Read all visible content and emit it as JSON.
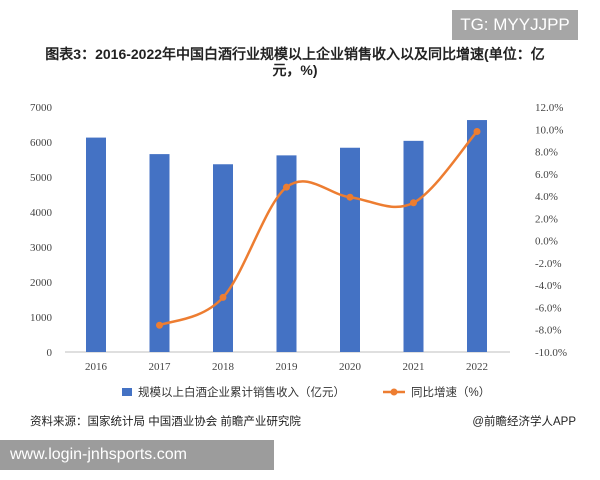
{
  "watermark_tag": "TG: MYYJJPP",
  "title": "图表3：2016-2022年中国白酒行业规模以上企业销售收入以及同比增速(单位：亿元，%)",
  "source": "资料来源：国家统计局 中国酒业协会 前瞻产业研究院",
  "publisher": "@前瞻经济学人APP",
  "site_banner": "www.login-jnhsports.com",
  "colors": {
    "bar": "#4472c4",
    "line": "#ed7d31"
  },
  "chart_data": {
    "type": "bar+line",
    "categories": [
      "2016",
      "2017",
      "2018",
      "2019",
      "2020",
      "2021",
      "2022"
    ],
    "series": [
      {
        "name": "规模以上白酒企业累计销售收入（亿元）",
        "type": "bar",
        "axis": "left",
        "values": [
          6126,
          5654,
          5364,
          5618,
          5836,
          6033,
          6627
        ]
      },
      {
        "name": "同比增速（%）",
        "type": "line",
        "axis": "right",
        "values": [
          null,
          -7.6,
          -5.1,
          4.8,
          3.9,
          3.4,
          9.8
        ]
      }
    ],
    "left_axis": {
      "ylim": [
        0,
        7000
      ],
      "ticks": [
        "0",
        "1000",
        "2000",
        "3000",
        "4000",
        "5000",
        "6000",
        "7000"
      ]
    },
    "right_axis": {
      "ylim": [
        -10,
        12
      ],
      "ticks": [
        "-10.0%",
        "-8.0%",
        "-6.0%",
        "-4.0%",
        "-2.0%",
        "0.0%",
        "2.0%",
        "4.0%",
        "6.0%",
        "8.0%",
        "10.0%",
        "12.0%"
      ]
    },
    "legend_position": "bottom"
  }
}
